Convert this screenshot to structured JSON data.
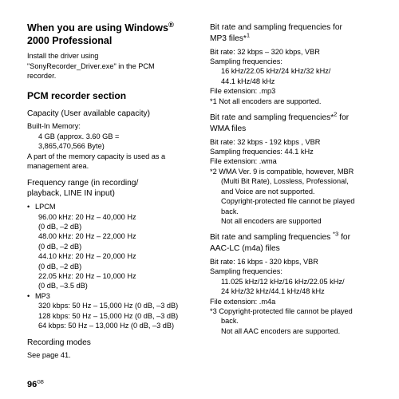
{
  "left": {
    "h1_l1": "When you are using Windows",
    "h1_sup": "®",
    "h1_l2": "2000 Professional",
    "p1_l1": "Install the driver using",
    "p1_l2": "\"SonyRecorder_Driver.exe\" in the PCM",
    "p1_l3": "recorder.",
    "h2": "PCM recorder section",
    "cap_h": "Capacity (User available capacity)",
    "cap_l1": "Built-In Memory:",
    "cap_l2": "4 GB (approx. 3.60 GB =",
    "cap_l3": "3,865,470,566 Byte)",
    "cap_l4": "A part of the memory capacity is used as a",
    "cap_l5": "management area.",
    "freq_h_l1": "Frequency range (in recording/",
    "freq_h_l2": "playback, LINE IN input)",
    "lpcm": "LPCM",
    "lpcm1": "96.00 kHz: 20 Hz – 40,000 Hz",
    "lpcm1b": "(0 dB, –2 dB)",
    "lpcm2": "48.00 kHz: 20 Hz – 22,000 Hz",
    "lpcm2b": "(0 dB, –2 dB)",
    "lpcm3": "44.10 kHz: 20 Hz – 20,000 Hz",
    "lpcm3b": "(0 dB, –2 dB)",
    "lpcm4": "22.05 kHz: 20 Hz – 10,000 Hz",
    "lpcm4b": "(0 dB, –3.5 dB)",
    "mp3": "MP3",
    "mp31": "320 kbps: 50 Hz – 15,000 Hz (0 dB, –3 dB)",
    "mp32": "128 kbps: 50 Hz – 15,000 Hz (0 dB, –3 dB)",
    "mp33": "64 kbps: 50 Hz – 13,000 Hz (0 dB, –3 dB)",
    "rec_h": "Recording modes",
    "rec_l": "See page 41."
  },
  "right": {
    "mp3_h_l1": "Bit rate and sampling frequencies for",
    "mp3_h_l2a": "MP3 files*",
    "mp3_h_l2b": "1",
    "m1": "Bit rate: 32 kbps – 320 kbps, VBR",
    "m2": "Sampling frequencies:",
    "m3": "16 kHz/22.05 kHz/24 kHz/32 kHz/",
    "m4": "44.1 kHz/48 kHz",
    "m5": "File extension: .mp3",
    "m6": "*1  Not all encoders are supported.",
    "wma_h_l1a": "Bit rate and sampling frequencies*",
    "wma_h_l1b": "2",
    "wma_h_l1c": " for",
    "wma_h_l2": "WMA files",
    "w1": "Bit rate: 32 kbps - 192 kbps , VBR",
    "w2": "Sampling frequencies: 44.1 kHz",
    "w3": "File extension: .wma",
    "w4": "*2  WMA Ver. 9 is compatible, however, MBR",
    "w5": "(Multi Bit Rate), Lossless, Professional,",
    "w6": "and Voice are not supported.",
    "w7": "Copyright-protected file cannot be played",
    "w8": "back.",
    "w9": "Not all encoders are supported",
    "aac_h_l1a": "Bit rate and sampling frequencies ",
    "aac_h_l1b": "*3",
    "aac_h_l1c": " for",
    "aac_h_l2": "AAC-LC (m4a) files",
    "a1": "Bit rate: 16 kbps - 320 kbps, VBR",
    "a2": "Sampling frequencies:",
    "a3": "11.025 kHz/12 kHz/16 kHz/22.05 kHz/",
    "a4": "24 kHz/32 kHz/44.1 kHz/48 kHz",
    "a5": "File extension: .m4a",
    "a6": "*3  Copyright-protected file cannot be played",
    "a7": "back.",
    "a8": "Not all AAC encoders are supported."
  },
  "page": {
    "num": "96",
    "suffix": "GB"
  }
}
